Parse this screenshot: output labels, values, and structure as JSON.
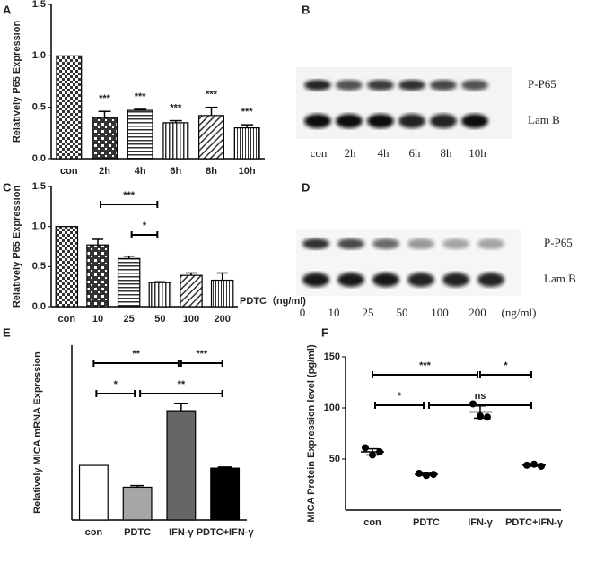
{
  "chart_data": [
    {
      "type": "bar",
      "panel": "A",
      "ylabel": "Relatively P65 Expression",
      "categories": [
        "con",
        "2h",
        "4h",
        "6h",
        "8h",
        "10h"
      ],
      "values": [
        1.0,
        0.4,
        0.47,
        0.35,
        0.42,
        0.3
      ],
      "errors": [
        null,
        0.06,
        0.01,
        0.02,
        0.08,
        0.03
      ],
      "significance": [
        null,
        "***",
        "***",
        "***",
        "***",
        "***"
      ],
      "ylim": [
        0,
        1.5
      ],
      "yticks": [
        {
          "value": 0,
          "label": "0.0"
        },
        0.5,
        {
          "value": 1,
          "label": "1.0"
        },
        1.5
      ]
    },
    {
      "type": "bar",
      "panel": "C",
      "ylabel": "Relatively P65 Expression",
      "xlabel": "PDTC（ng/ml)",
      "categories": [
        "con",
        "10",
        "25",
        "50",
        "100",
        "200"
      ],
      "values": [
        1.0,
        0.77,
        0.6,
        0.3,
        0.39,
        0.33
      ],
      "errors": [
        null,
        0.07,
        0.03,
        0.01,
        0.03,
        0.09
      ],
      "brackets": [
        {
          "from": "10",
          "to": "50",
          "text": "***"
        },
        {
          "from": "25",
          "to": "50",
          "text": "*"
        }
      ],
      "ylim": [
        0,
        1.5
      ],
      "yticks": [
        {
          "value": 0,
          "label": "0.0"
        },
        0.5,
        {
          "value": 1,
          "label": "1.0"
        },
        1.5
      ]
    },
    {
      "type": "bar",
      "panel": "E",
      "ylabel": "Relatively MICA mRNA Expression",
      "categories": [
        "con",
        "PDTC",
        "IFN-γ",
        "PDTC+IFN-γ"
      ],
      "values": [
        1.0,
        0.6,
        2.0,
        0.95
      ],
      "errors": [
        null,
        0.03,
        0.13,
        0.02
      ],
      "colors": [
        "#ffffff",
        "#a6a6a6",
        "#666666",
        "#000000"
      ],
      "brackets": [
        {
          "from": "con",
          "to": "IFN-γ",
          "text": "**"
        },
        {
          "from": "IFN-γ",
          "to": "PDTC+IFN-γ",
          "text": "***"
        },
        {
          "from": "con",
          "to": "PDTC",
          "text": "*"
        },
        {
          "from": "PDTC",
          "to": "PDTC+IFN-γ",
          "text": "**"
        }
      ],
      "ylim": [
        0,
        3.2
      ]
    },
    {
      "type": "scatter",
      "panel": "F",
      "ylabel": "MICA Protein Expression level (pg/ml)",
      "categories": [
        "con",
        "PDTC",
        "IFN-γ",
        "PDTC+IFN-γ"
      ],
      "points": [
        [
          61,
          54,
          57
        ],
        [
          36,
          34,
          35
        ],
        [
          104,
          92,
          91
        ],
        [
          44,
          45,
          43
        ]
      ],
      "values": [
        57,
        35,
        96,
        44
      ],
      "errors": [
        3,
        1,
        6,
        1
      ],
      "brackets": [
        {
          "from": "con",
          "to": "IFN-γ",
          "text": "***"
        },
        {
          "from": "IFN-γ",
          "to": "PDTC+IFN-γ",
          "text": "*"
        },
        {
          "from": "con",
          "to": "PDTC",
          "text": "*"
        },
        {
          "from": "PDTC",
          "to": "PDTC+IFN-γ",
          "text": "ns"
        }
      ],
      "ylim": [
        0,
        150
      ],
      "yticks": [
        50,
        100,
        150
      ]
    }
  ],
  "blots": [
    {
      "panel": "B",
      "bands": [
        "P-P65",
        "Lam B"
      ],
      "lanes": [
        "con",
        "2h",
        "4h",
        "6h",
        "8h",
        "10h"
      ]
    },
    {
      "panel": "D",
      "bands": [
        "P-P65",
        "Lam B"
      ],
      "lanes": [
        "0",
        "10",
        "25",
        "50",
        "100",
        "200",
        "(ng/ml)"
      ]
    }
  ]
}
